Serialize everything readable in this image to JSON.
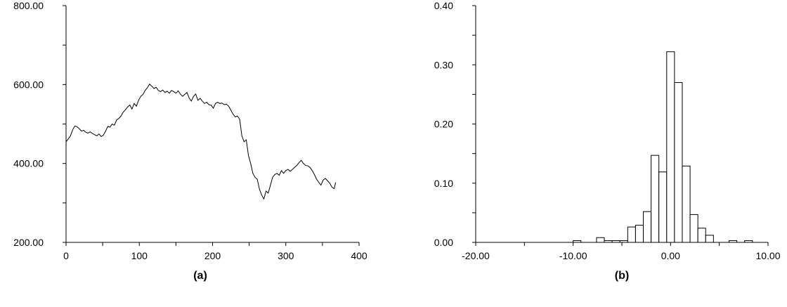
{
  "chart_data": [
    {
      "type": "line",
      "caption": "(a)",
      "xlim": [
        0,
        400
      ],
      "ylim": [
        200,
        800
      ],
      "x_ticks": [
        0,
        100,
        200,
        300,
        400
      ],
      "x_tick_labels": [
        "0",
        "100",
        "200",
        "300",
        "400"
      ],
      "y_ticks": [
        200,
        400,
        600,
        800
      ],
      "y_tick_labels": [
        "200.00",
        "400.00",
        "600.00",
        "800.00"
      ],
      "x_minor_step": 50,
      "y_minor_step": 100,
      "grid": false,
      "line_color": "#000000",
      "series": [
        {
          "x": [
            0,
            3,
            6,
            9,
            12,
            15,
            18,
            21,
            24,
            27,
            30,
            33,
            36,
            39,
            42,
            45,
            48,
            51,
            54,
            57,
            60,
            63,
            66,
            69,
            72,
            75,
            78,
            81,
            84,
            87,
            90,
            93,
            96,
            99,
            102,
            105,
            108,
            111,
            114,
            117,
            120,
            123,
            126,
            129,
            132,
            135,
            138,
            141,
            144,
            147,
            150,
            153,
            156,
            159,
            162,
            165,
            168,
            171,
            174,
            177,
            180,
            183,
            186,
            189,
            192,
            195,
            198,
            201,
            204,
            207,
            210,
            213,
            216,
            219,
            222,
            225,
            228,
            231,
            234,
            237,
            240,
            243,
            246,
            249,
            252,
            255,
            258,
            261,
            264,
            267,
            270,
            273,
            276,
            279,
            282,
            285,
            288,
            291,
            294,
            297,
            300,
            303,
            306,
            309,
            312,
            315,
            318,
            321,
            324,
            327,
            330,
            333,
            336,
            339,
            342,
            345,
            348,
            351,
            354,
            357,
            360,
            363,
            366,
            368
          ],
          "values": [
            455,
            462,
            470,
            485,
            495,
            493,
            488,
            482,
            484,
            479,
            477,
            480,
            476,
            473,
            470,
            475,
            468,
            472,
            482,
            494,
            492,
            500,
            497,
            510,
            514,
            520,
            530,
            536,
            543,
            548,
            538,
            552,
            545,
            560,
            570,
            575,
            585,
            592,
            601,
            596,
            590,
            593,
            585,
            582,
            586,
            580,
            583,
            578,
            585,
            582,
            578,
            584,
            576,
            570,
            575,
            580,
            566,
            558,
            570,
            576,
            560,
            565,
            558,
            552,
            555,
            549,
            548,
            540,
            552,
            555,
            552,
            553,
            549,
            550,
            545,
            535,
            525,
            518,
            520,
            512,
            470,
            455,
            460,
            420,
            400,
            375,
            365,
            360,
            335,
            320,
            310,
            330,
            325,
            345,
            365,
            372,
            375,
            370,
            382,
            375,
            382,
            385,
            380,
            385,
            390,
            395,
            402,
            408,
            400,
            395,
            394,
            390,
            382,
            372,
            360,
            352,
            345,
            358,
            362,
            356,
            350,
            340,
            336,
            352
          ]
        }
      ]
    },
    {
      "type": "bar",
      "caption": "(b)",
      "xlim": [
        -20,
        10
      ],
      "ylim": [
        0,
        0.4
      ],
      "x_ticks": [
        -20,
        -10,
        0,
        10
      ],
      "x_tick_labels": [
        "-20.00",
        "-10.00",
        "0.00",
        "10.00"
      ],
      "y_ticks": [
        0,
        0.1,
        0.2,
        0.3,
        0.4
      ],
      "y_tick_labels": [
        "0.00",
        "0.10",
        "0.20",
        "0.30",
        "0.40"
      ],
      "x_minor_step": 5,
      "y_minor_step": 0.05,
      "grid": false,
      "bin_width": 0.8,
      "bar_fill": "#ffffff",
      "bar_stroke": "#000000",
      "bins": [
        {
          "start": -10.0,
          "value": 0.003
        },
        {
          "start": -7.6,
          "value": 0.008
        },
        {
          "start": -6.8,
          "value": 0.003
        },
        {
          "start": -6.0,
          "value": 0.003
        },
        {
          "start": -5.2,
          "value": 0.003
        },
        {
          "start": -4.4,
          "value": 0.026
        },
        {
          "start": -3.6,
          "value": 0.029
        },
        {
          "start": -2.8,
          "value": 0.052
        },
        {
          "start": -2.0,
          "value": 0.147
        },
        {
          "start": -1.2,
          "value": 0.119
        },
        {
          "start": -0.4,
          "value": 0.322
        },
        {
          "start": 0.4,
          "value": 0.27
        },
        {
          "start": 1.2,
          "value": 0.129
        },
        {
          "start": 2.0,
          "value": 0.047
        },
        {
          "start": 2.8,
          "value": 0.024
        },
        {
          "start": 3.6,
          "value": 0.012
        },
        {
          "start": 6.0,
          "value": 0.003
        },
        {
          "start": 7.6,
          "value": 0.003
        }
      ]
    }
  ]
}
